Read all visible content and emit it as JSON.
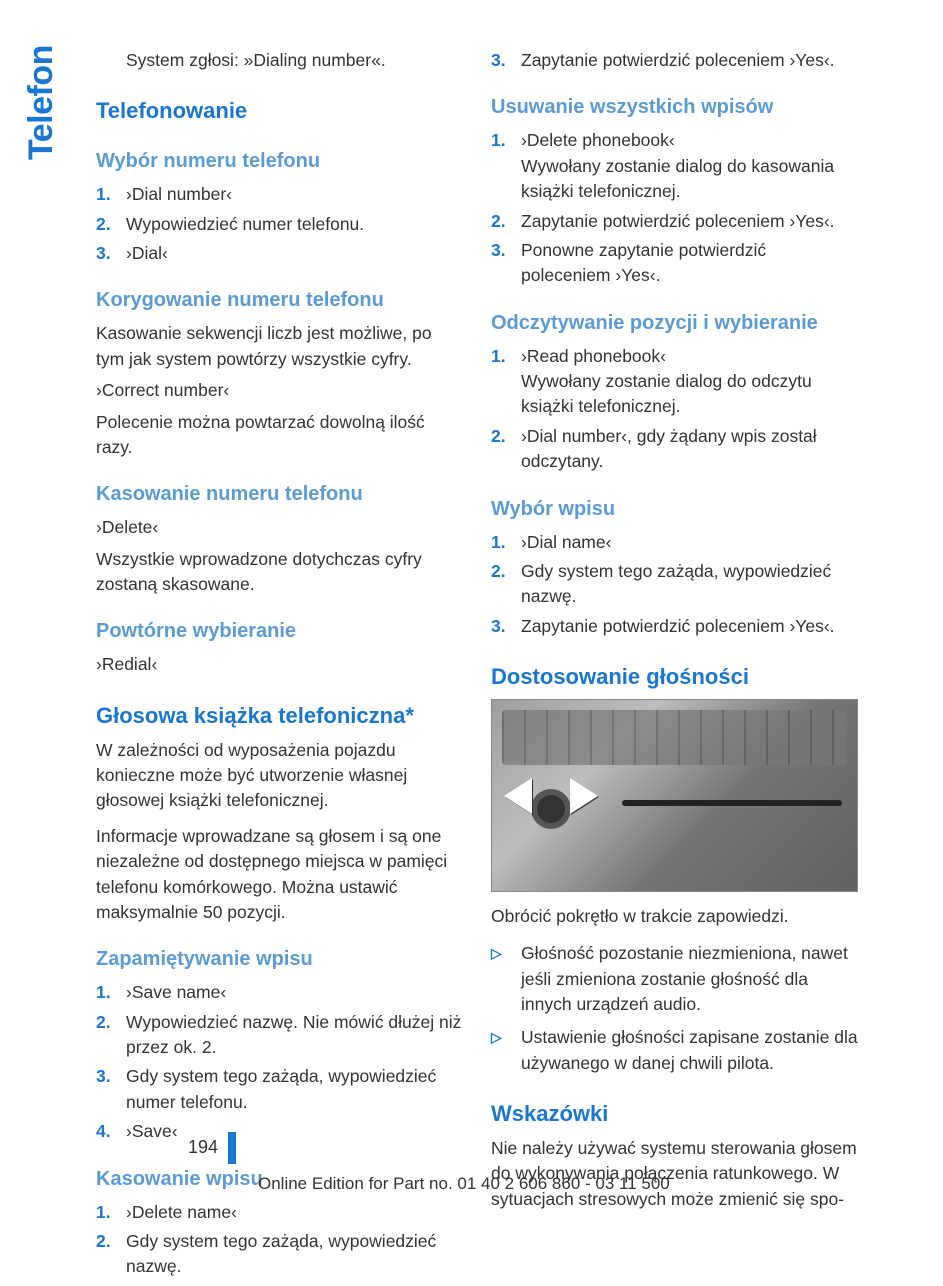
{
  "sideTab": "Telefon",
  "pageNumber": "194",
  "edition": "Online Edition for Part no. 01 40 2 606 860 - 03 11 500",
  "colors": {
    "accent": "#1976d2",
    "subhead": "#5b9bd5",
    "text": "#333333",
    "bg": "#ffffff"
  },
  "left": {
    "intro": "System zgłosi: »Dialing number«.",
    "h1": "Telefonowanie",
    "sec1": {
      "title": "Wybór numeru telefonu",
      "items": [
        "›Dial number‹",
        "Wypowiedzieć numer telefonu.",
        "›Dial‹"
      ]
    },
    "sec2": {
      "title": "Korygowanie numeru telefonu",
      "p1": "Kasowanie sekwencji liczb jest możliwe, po tym jak system powtórzy wszystkie cyfry.",
      "p2": "›Correct number‹",
      "p3": "Polecenie można powtarzać dowolną ilość razy."
    },
    "sec3": {
      "title": "Kasowanie numeru telefonu",
      "p1": "›Delete‹",
      "p2": "Wszystkie wprowadzone dotychczas cyfry zostaną skasowane."
    },
    "sec4": {
      "title": "Powtórne wybieranie",
      "p1": "›Redial‹"
    },
    "h2": "Głosowa książka telefoniczna*",
    "h2p1": "W zależności od wyposażenia pojazdu konieczne może być utworzenie własnej głosowej książki telefonicznej.",
    "h2p2": "Informacje wprowadzane są głosem i są one niezależne od dostępnego miejsca w pamięci telefonu komórkowego. Można ustawić maksymalnie 50 pozycji.",
    "sec5": {
      "title": "Zapamiętywanie wpisu",
      "items": [
        "›Save name‹",
        "Wypowiedzieć nazwę. Nie mówić dłużej niż przez ok. 2.",
        "Gdy system tego zażąda, wypowiedzieć numer telefonu.",
        "›Save‹"
      ]
    },
    "sec6": {
      "title": "Kasowanie wpisu",
      "items": [
        "›Delete name‹",
        "Gdy system tego zażąda, wypowiedzieć nazwę."
      ]
    }
  },
  "right": {
    "topItem": "Zapytanie potwierdzić poleceniem ›Yes‹.",
    "sec1": {
      "title": "Usuwanie wszystkich wpisów",
      "items": [
        "›Delete phonebook‹\nWywołany zostanie dialog do kasowania książki telefonicznej.",
        "Zapytanie potwierdzić poleceniem ›Yes‹.",
        "Ponowne zapytanie potwierdzić poleceniem ›Yes‹."
      ]
    },
    "sec2": {
      "title": "Odczytywanie pozycji i wybieranie",
      "items": [
        "›Read phonebook‹\nWywołany zostanie dialog do odczytu książki telefonicznej.",
        "›Dial number‹, gdy żądany wpis został odczytany."
      ]
    },
    "sec3": {
      "title": "Wybór wpisu",
      "items": [
        "›Dial name‹",
        "Gdy system tego zażąda, wypowiedzieć nazwę.",
        "Zapytanie potwierdzić poleceniem ›Yes‹."
      ]
    },
    "h1": "Dostosowanie głośności",
    "figCaption": "Obrócić pokrętło w trakcie zapowiedzi.",
    "bullets": [
      "Głośność pozostanie niezmieniona, nawet jeśli zmieniona zostanie głośność dla innych urządzeń audio.",
      "Ustawienie głośności zapisane zostanie dla używanego w danej chwili pilota."
    ],
    "h2": "Wskazówki",
    "h2p": "Nie należy używać systemu sterowania głosem do wykonywania połączenia ratunkowego. W sytuacjach stresowych może zmienić się spo-"
  }
}
